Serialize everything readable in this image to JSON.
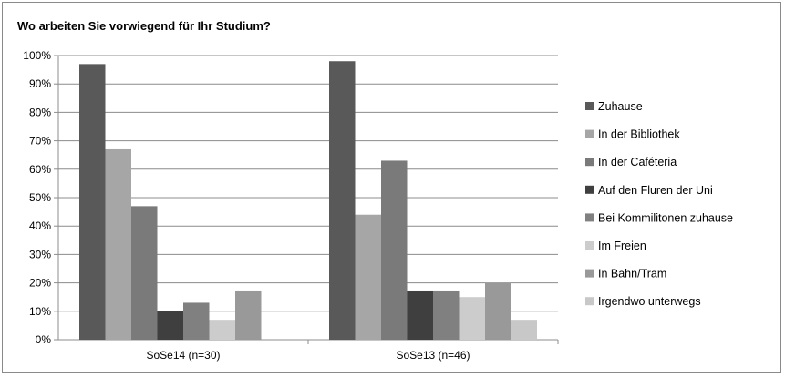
{
  "chart_data": {
    "type": "bar",
    "title": "Wo arbeiten Sie vorwiegend für Ihr Studium?",
    "categories": [
      "SoSe14 (n=30)",
      "SoSe13 (n=46)"
    ],
    "series": [
      {
        "name": "Zuhause",
        "values": [
          97,
          98
        ],
        "color": "#595959"
      },
      {
        "name": "In der Bibliothek",
        "values": [
          67,
          44
        ],
        "color": "#a6a6a6"
      },
      {
        "name": "In der Caféteria",
        "values": [
          47,
          63
        ],
        "color": "#7a7a7a"
      },
      {
        "name": "Auf den Fluren der Uni",
        "values": [
          10,
          17
        ],
        "color": "#3f3f3f"
      },
      {
        "name": "Bei Kommilitonen zuhause",
        "values": [
          13,
          17
        ],
        "color": "#808080"
      },
      {
        "name": "Im Freien",
        "values": [
          7,
          15
        ],
        "color": "#cccccc"
      },
      {
        "name": "In Bahn/Tram",
        "values": [
          17,
          20
        ],
        "color": "#999999"
      },
      {
        "name": "Irgendwo unterwegs",
        "values": [
          0,
          7
        ],
        "color": "#c8c8c8"
      }
    ],
    "ylim": [
      0,
      100
    ],
    "yticks": [
      "0%",
      "10%",
      "20%",
      "30%",
      "40%",
      "50%",
      "60%",
      "70%",
      "80%",
      "90%",
      "100%"
    ],
    "grid": true,
    "legend_position": "right"
  }
}
